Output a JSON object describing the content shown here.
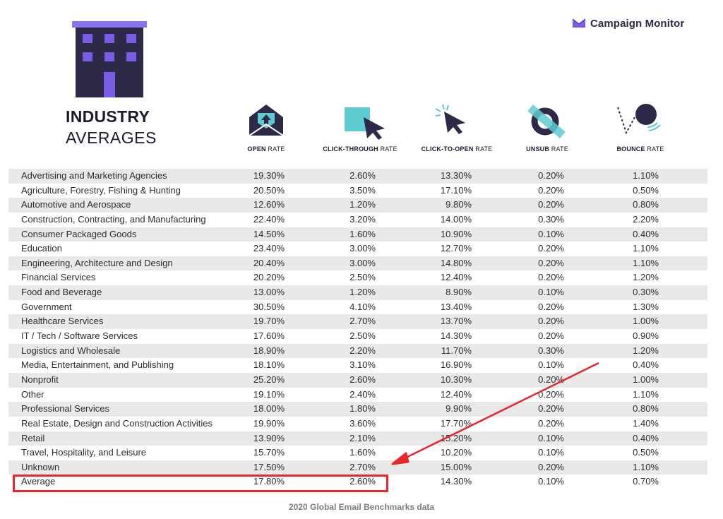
{
  "brand": {
    "name": "Campaign Monitor"
  },
  "title": {
    "line1": "INDUSTRY",
    "line2": "AVERAGES"
  },
  "footer": "2020 Global Email Benchmarks data",
  "colors": {
    "accent": "#7b5ce6",
    "dark": "#2c2a47",
    "teal": "#5ecbd0",
    "highlight": "#e8262b",
    "shade": "#e9e9ea"
  },
  "chart_data": {
    "type": "table",
    "columns": [
      {
        "bold": "OPEN",
        "rest": " RATE",
        "icon": "envelope-open-icon"
      },
      {
        "bold": "CLICK-THROUGH",
        "rest": " RATE",
        "icon": "click-cursor-icon"
      },
      {
        "bold": "CLICK-TO-OPEN",
        "rest": " RATE",
        "icon": "click-burst-cursor-icon"
      },
      {
        "bold": "UNSUB",
        "rest": " RATE",
        "icon": "unsubscribe-icon"
      },
      {
        "bold": "BOUNCE",
        "rest": " RATE",
        "icon": "bounce-ball-icon"
      }
    ],
    "rows": [
      {
        "industry": "Advertising and Marketing Agencies",
        "values": [
          "19.30%",
          "2.60%",
          "13.30%",
          "0.20%",
          "1.10%"
        ]
      },
      {
        "industry": "Agriculture, Forestry, Fishing & Hunting",
        "values": [
          "20.50%",
          "3.50%",
          "17.10%",
          "0.20%",
          "0.50%"
        ]
      },
      {
        "industry": "Automotive and Aerospace",
        "values": [
          "12.60%",
          "1.20%",
          "9.80%",
          "0.20%",
          "0.80%"
        ]
      },
      {
        "industry": "Construction, Contracting, and Manufacturing",
        "values": [
          "22.40%",
          "3.20%",
          "14.00%",
          "0.30%",
          "2.20%"
        ]
      },
      {
        "industry": "Consumer Packaged Goods",
        "values": [
          "14.50%",
          "1.60%",
          "10.90%",
          "0.10%",
          "0.40%"
        ]
      },
      {
        "industry": "Education",
        "values": [
          "23.40%",
          "3.00%",
          "12.70%",
          "0.20%",
          "1.10%"
        ]
      },
      {
        "industry": "Engineering, Architecture and Design",
        "values": [
          "20.40%",
          "3.00%",
          "14.80%",
          "0.20%",
          "1.10%"
        ]
      },
      {
        "industry": "Financial Services",
        "values": [
          "20.20%",
          "2.50%",
          "12.40%",
          "0.20%",
          "1.20%"
        ]
      },
      {
        "industry": "Food and Beverage",
        "values": [
          "13.00%",
          "1.20%",
          "8.90%",
          "0.10%",
          "0.30%"
        ]
      },
      {
        "industry": "Government",
        "values": [
          "30.50%",
          "4.10%",
          "13.40%",
          "0.20%",
          "1.30%"
        ]
      },
      {
        "industry": "Healthcare Services",
        "values": [
          "19.70%",
          "2.70%",
          "13.70%",
          "0.20%",
          "1.00%"
        ]
      },
      {
        "industry": "IT / Tech / Software Services",
        "values": [
          "17.60%",
          "2.50%",
          "14.30%",
          "0.20%",
          "0.90%"
        ]
      },
      {
        "industry": "Logistics and Wholesale",
        "values": [
          "18.90%",
          "2.20%",
          "11.70%",
          "0.30%",
          "1.20%"
        ]
      },
      {
        "industry": "Media, Entertainment, and Publishing",
        "values": [
          "18.10%",
          "3.10%",
          "16.90%",
          "0.10%",
          "0.40%"
        ]
      },
      {
        "industry": "Nonprofit",
        "values": [
          "25.20%",
          "2.60%",
          "10.30%",
          "0.20%",
          "1.00%"
        ]
      },
      {
        "industry": "Other",
        "values": [
          "19.10%",
          "2.40%",
          "12.40%",
          "0.20%",
          "1.10%"
        ]
      },
      {
        "industry": "Professional Services",
        "values": [
          "18.00%",
          "1.80%",
          "9.90%",
          "0.20%",
          "0.80%"
        ]
      },
      {
        "industry": "Real Estate, Design and Construction Activities",
        "values": [
          "19.90%",
          "3.60%",
          "17.70%",
          "0.20%",
          "1.40%"
        ]
      },
      {
        "industry": "Retail",
        "values": [
          "13.90%",
          "2.10%",
          "15.20%",
          "0.10%",
          "0.40%"
        ]
      },
      {
        "industry": "Travel, Hospitality, and Leisure",
        "values": [
          "15.70%",
          "1.60%",
          "10.20%",
          "0.10%",
          "0.50%"
        ]
      },
      {
        "industry": "Unknown",
        "values": [
          "17.50%",
          "2.70%",
          "15.00%",
          "0.20%",
          "1.10%"
        ]
      },
      {
        "industry": "Average",
        "values": [
          "17.80%",
          "2.60%",
          "14.30%",
          "0.10%",
          "0.70%"
        ]
      }
    ],
    "highlighted_row": "Average",
    "highlighted_columns": [
      "OPEN RATE",
      "CLICK-THROUGH RATE"
    ]
  }
}
